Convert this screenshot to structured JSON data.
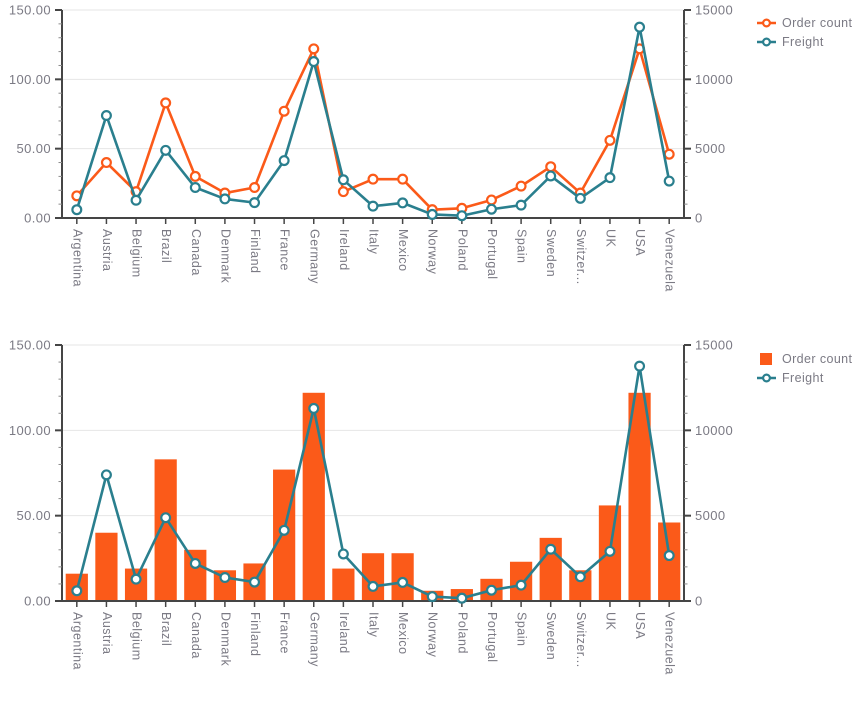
{
  "colors": {
    "order": "#FB5A19",
    "freight": "#2A7F8E",
    "axis_line": "#454545",
    "grid_line": "#E6E6E6",
    "label": "#7B7A84",
    "minor_tick": "#8A8A8A"
  },
  "chart_data": [
    {
      "type": "line",
      "title": "",
      "categories": [
        "Argentina",
        "Austria",
        "Belgium",
        "Brazil",
        "Canada",
        "Denmark",
        "Finland",
        "France",
        "Germany",
        "Ireland",
        "Italy",
        "Mexico",
        "Norway",
        "Poland",
        "Portugal",
        "Spain",
        "Sweden",
        "Switzer...",
        "UK",
        "USA",
        "Venezuela"
      ],
      "series": [
        {
          "name": "Order count",
          "type": "line",
          "axis": "left",
          "color": "#FB5A19",
          "values": [
            16,
            40,
            19,
            83,
            30,
            18,
            22,
            77,
            122,
            19,
            28,
            28,
            6,
            7,
            13,
            23,
            37,
            18,
            56,
            122,
            46
          ]
        },
        {
          "name": "Freight",
          "type": "line",
          "axis": "right",
          "color": "#2A7F8E",
          "values": [
            598.58,
            7391.5,
            1280.14,
            4880.19,
            2198.7,
            1377.1,
            1109.06,
            4140.44,
            11283.28,
            2755.24,
            855.04,
            1089.1,
            257.45,
            164.93,
            632.62,
            928.62,
            3032.2,
            1418.55,
            2909.09,
            13761.82,
            2662.38
          ]
        }
      ],
      "left_axis": {
        "range": [
          0,
          150
        ],
        "tick_values": [
          0,
          50,
          100,
          150
        ],
        "tick_labels": [
          "0.00",
          "50.00",
          "100.00",
          "150.00"
        ],
        "minor_step": 10
      },
      "right_axis": {
        "range": [
          0,
          15000
        ],
        "tick_values": [
          0,
          5000,
          10000,
          15000
        ],
        "tick_labels": [
          "0",
          "5000",
          "10000",
          "15000"
        ],
        "minor_step": 1000
      },
      "grid": "horizontal",
      "legend_position": "top-right"
    },
    {
      "type": "bar",
      "title": "",
      "categories": [
        "Argentina",
        "Austria",
        "Belgium",
        "Brazil",
        "Canada",
        "Denmark",
        "Finland",
        "France",
        "Germany",
        "Ireland",
        "Italy",
        "Mexico",
        "Norway",
        "Poland",
        "Portugal",
        "Spain",
        "Sweden",
        "Switzer...",
        "UK",
        "USA",
        "Venezuela"
      ],
      "series": [
        {
          "name": "Order count",
          "type": "bar",
          "axis": "left",
          "color": "#FB5A19",
          "values": [
            16,
            40,
            19,
            83,
            30,
            18,
            22,
            77,
            122,
            19,
            28,
            28,
            6,
            7,
            13,
            23,
            37,
            18,
            56,
            122,
            46
          ]
        },
        {
          "name": "Freight",
          "type": "line",
          "axis": "right",
          "color": "#2A7F8E",
          "values": [
            598.58,
            7391.5,
            1280.14,
            4880.19,
            2198.7,
            1377.1,
            1109.06,
            4140.44,
            11283.28,
            2755.24,
            855.04,
            1089.1,
            257.45,
            164.93,
            632.62,
            928.62,
            3032.2,
            1418.55,
            2909.09,
            13761.82,
            2662.38
          ]
        }
      ],
      "left_axis": {
        "range": [
          0,
          150
        ],
        "tick_values": [
          0,
          50,
          100,
          150
        ],
        "tick_labels": [
          "0.00",
          "50.00",
          "100.00",
          "150.00"
        ],
        "minor_step": 10
      },
      "right_axis": {
        "range": [
          0,
          15000
        ],
        "tick_values": [
          0,
          5000,
          10000,
          15000
        ],
        "tick_labels": [
          "0",
          "5000",
          "10000",
          "15000"
        ],
        "minor_step": 1000
      },
      "grid": "horizontal",
      "legend_position": "top-right"
    }
  ]
}
